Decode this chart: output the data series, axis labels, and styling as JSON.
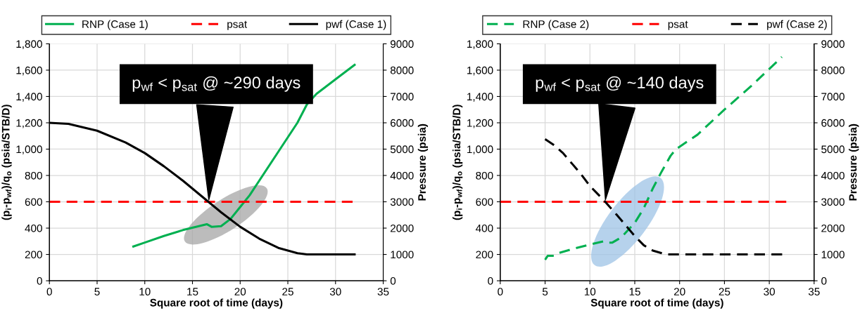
{
  "chart_data": [
    {
      "type": "line",
      "xlabel": "Square root of time (days)",
      "ylabel": "(p$_{i}$-p$_{wf}$)/q$_{o}$ (psia/STB/D)",
      "y2label": "Pressure (psia)",
      "xlim": [
        0,
        35
      ],
      "xticks": [
        0,
        5,
        10,
        15,
        20,
        25,
        30,
        35
      ],
      "ylim": [
        0,
        1800
      ],
      "yticks": [
        0,
        200,
        400,
        600,
        800,
        {
          "value": 1000,
          "label": "1,000"
        },
        {
          "value": 1200,
          "label": "1,200"
        },
        {
          "value": 1400,
          "label": "1,400"
        },
        {
          "value": 1600,
          "label": "1,600"
        },
        {
          "value": 1800,
          "label": "1,800"
        }
      ],
      "y2lim": [
        0,
        9000
      ],
      "y2ticks": [
        0,
        1000,
        2000,
        3000,
        4000,
        5000,
        6000,
        7000,
        8000,
        9000
      ],
      "grid": true,
      "legend": "top",
      "series": [
        {
          "name": "RNP (Case 1)",
          "color": "#00b050",
          "line_style": "solid",
          "x": [
            8.8,
            10,
            12,
            14,
            16.5,
            17,
            18,
            19,
            20,
            21,
            22,
            24,
            26,
            27,
            28,
            30,
            32
          ],
          "values": [
            260,
            290,
            340,
            385,
            430,
            410,
            415,
            470,
            560,
            650,
            760,
            980,
            1200,
            1340,
            1420,
            1530,
            1640
          ]
        },
        {
          "name": "psat",
          "color": "#ff0000",
          "line_style": "dashed",
          "axis": "y2",
          "x": [
            0,
            32
          ],
          "values": [
            3000,
            3000
          ]
        },
        {
          "name": "pwf (Case 1)",
          "color": "#000000",
          "line_style": "solid",
          "axis": "y2",
          "x": [
            0,
            2,
            5,
            8,
            10,
            12,
            14,
            16,
            17,
            18,
            20,
            22,
            24,
            26,
            27,
            32
          ],
          "values": [
            6000,
            5960,
            5700,
            5250,
            4850,
            4350,
            3800,
            3200,
            2900,
            2600,
            2050,
            1600,
            1250,
            1050,
            1000,
            1000
          ]
        }
      ],
      "annotations": [
        {
          "text": "p$_{wf}$ < p$_{sat}$ @ ~290 days",
          "x": 16.7,
          "y": 600
        }
      ]
    },
    {
      "type": "line",
      "xlabel": "Square root of time (days)",
      "ylabel": "(p$_{i}$-p$_{wf}$)/q$_{o}$ (psia/STB/D)",
      "y2label": "Pressure (psia)",
      "xlim": [
        0,
        35
      ],
      "xticks": [
        0,
        5,
        10,
        15,
        20,
        25,
        30,
        35
      ],
      "ylim": [
        0,
        1800
      ],
      "yticks": [
        0,
        200,
        400,
        600,
        800,
        {
          "value": 1000,
          "label": "1,000"
        },
        {
          "value": 1200,
          "label": "1,200"
        },
        {
          "value": 1400,
          "label": "1,400"
        },
        {
          "value": 1600,
          "label": "1,600"
        },
        {
          "value": 1800,
          "label": "1,800"
        }
      ],
      "y2lim": [
        0,
        9000
      ],
      "y2ticks": [
        0,
        1000,
        2000,
        3000,
        4000,
        5000,
        6000,
        7000,
        8000,
        9000
      ],
      "grid": true,
      "legend": "top",
      "series": [
        {
          "name": "RNP (Case 2)",
          "color": "#00b050",
          "line_style": "dashed",
          "x": [
            5,
            5.3,
            6,
            6.5,
            8,
            10,
            11.5,
            12,
            12.5,
            13.5,
            15,
            16,
            17,
            18,
            19,
            19.6,
            22,
            25,
            28,
            31.4
          ],
          "values": [
            160,
            190,
            190,
            210,
            240,
            275,
            300,
            290,
            290,
            330,
            440,
            550,
            700,
            830,
            950,
            1000,
            1110,
            1300,
            1480,
            1700
          ]
        },
        {
          "name": "psat",
          "color": "#ff0000",
          "line_style": "dashed",
          "axis": "y2",
          "x": [
            0,
            32
          ],
          "values": [
            3000,
            3000
          ]
        },
        {
          "name": "pwf (Case 2)",
          "color": "#000000",
          "line_style": "dashed",
          "axis": "y2",
          "x": [
            5,
            6,
            7,
            8,
            9,
            10,
            11,
            11.7,
            13,
            14,
            15,
            16,
            17,
            18,
            18.5,
            31.6
          ],
          "values": [
            5380,
            5150,
            4850,
            4450,
            4050,
            3600,
            3250,
            3000,
            2500,
            2100,
            1700,
            1350,
            1150,
            1050,
            1000,
            1000
          ]
        }
      ],
      "annotations": [
        {
          "text": "p$_{wf}$ < p$_{sat}$ @ ~140 days",
          "x": 11.7,
          "y": 600
        }
      ]
    }
  ]
}
